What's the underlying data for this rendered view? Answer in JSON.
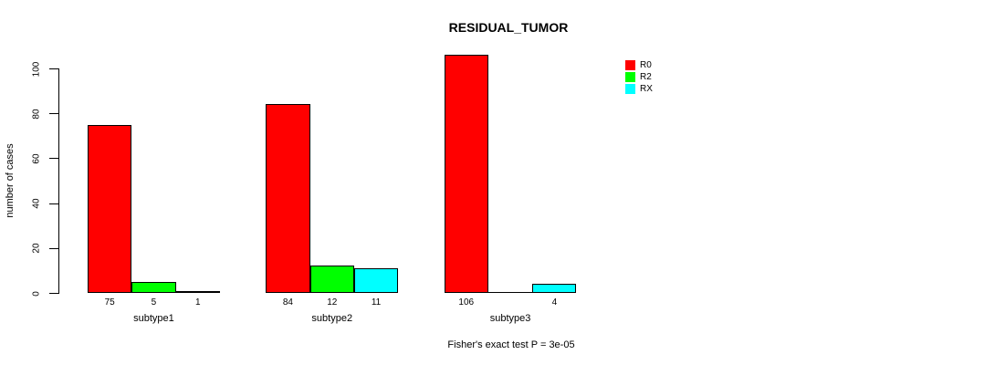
{
  "chart_data": {
    "type": "bar",
    "title": "RESIDUAL_TUMOR",
    "ylabel": "number of cases",
    "caption": "Fisher's exact test P = 3e-05",
    "categories": [
      "subtype1",
      "subtype2",
      "subtype3"
    ],
    "series": [
      {
        "name": "R0",
        "color": "#FF0000",
        "values": [
          75,
          84,
          106
        ]
      },
      {
        "name": "R2",
        "color": "#00FF00",
        "values": [
          5,
          12,
          0
        ]
      },
      {
        "name": "RX",
        "color": "#00FFFF",
        "values": [
          1,
          11,
          4
        ]
      }
    ],
    "bar_value_labels": [
      [
        "75",
        "5",
        "1"
      ],
      [
        "84",
        "12",
        "11"
      ],
      [
        "106",
        "",
        "4"
      ]
    ],
    "yticks": [
      0,
      20,
      40,
      60,
      80,
      100
    ],
    "ylim": [
      0,
      100
    ],
    "legend_position": "right",
    "legend_labels": [
      "R0",
      "R2",
      "RX"
    ],
    "grid": false,
    "background_color": "#FFFFFF",
    "axis_color": "#000000",
    "text_color": "#000000"
  }
}
